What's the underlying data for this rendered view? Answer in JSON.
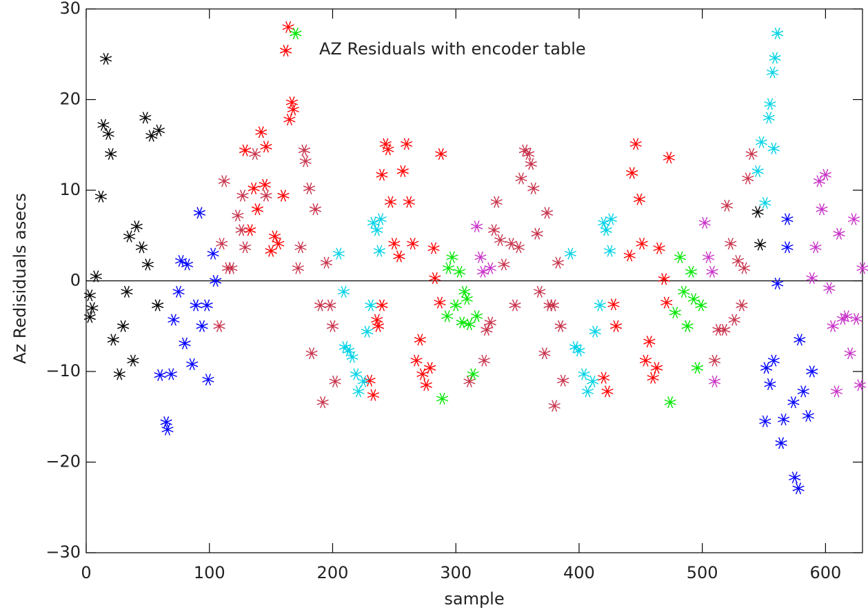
{
  "chart_data": {
    "type": "scatter",
    "title": "AZ Residuals with encoder table",
    "xlabel": "sample",
    "ylabel": "Az Redisiduals asecs",
    "xlim": [
      0,
      630
    ],
    "ylim": [
      -30,
      30
    ],
    "xticks": [
      0,
      100,
      200,
      300,
      400,
      500,
      600
    ],
    "yticks": [
      {
        "value": -30,
        "label": "−30"
      },
      {
        "value": -20,
        "label": "−20"
      },
      {
        "value": -10,
        "label": "−10"
      },
      0,
      10,
      20,
      30
    ],
    "hline": 0,
    "grid": false,
    "series": [
      {
        "color": "#000000",
        "x": [
          3,
          3,
          5,
          8,
          12,
          14,
          16,
          18,
          20,
          22,
          27,
          30,
          33,
          35,
          38,
          41,
          45,
          48,
          50,
          53,
          58,
          59,
          545,
          547
        ],
        "values": [
          -1.6,
          -4,
          -3,
          0.5,
          9.3,
          17.2,
          24.5,
          16.2,
          14,
          -6.5,
          -10.3,
          -5,
          -1.2,
          4.9,
          -8.8,
          6,
          3.7,
          18,
          1.8,
          16,
          -2.7,
          16.6,
          7.6,
          4
        ]
      },
      {
        "color": "#0000ff",
        "x": [
          60,
          65,
          66,
          69,
          71,
          75,
          77,
          80,
          82,
          86,
          89,
          92,
          94,
          98,
          99,
          103,
          105,
          551,
          552,
          555,
          558,
          561,
          564,
          566,
          569,
          569,
          574,
          575,
          578,
          579,
          582,
          586,
          589
        ],
        "values": [
          -10.4,
          -15.6,
          -16.4,
          -10.3,
          -4.3,
          -1.2,
          2.2,
          -6.9,
          1.8,
          -9.2,
          -2.7,
          7.5,
          -5,
          -2.7,
          -10.9,
          3,
          0,
          -15.5,
          -9.6,
          -11.4,
          -8.8,
          -0.3,
          -17.9,
          -15.3,
          6.8,
          3.7,
          -13.4,
          -21.7,
          -22.9,
          -6.5,
          -12.2,
          -14.9,
          -10
        ]
      },
      {
        "color": "#ff0000",
        "x": [
          129,
          133,
          136,
          139,
          142,
          145,
          146,
          150,
          153,
          156,
          160,
          162,
          164,
          165,
          167,
          168,
          230,
          233,
          236,
          237,
          240,
          240,
          243,
          245,
          247,
          250,
          254,
          257,
          260,
          262,
          265,
          268,
          271,
          273,
          276,
          279,
          282,
          283,
          287,
          288,
          420,
          423,
          428,
          430,
          441,
          443,
          446,
          449,
          451,
          454,
          457,
          460,
          463,
          465,
          469,
          471,
          473
        ],
        "values": [
          14.4,
          5.6,
          10.2,
          7.9,
          16.4,
          10.6,
          14.8,
          3.3,
          4.9,
          4.1,
          9.4,
          25.4,
          28,
          17.8,
          19.7,
          18.9,
          -11,
          -12.6,
          -4.3,
          -5,
          -2.7,
          11.7,
          15.1,
          14.5,
          8.7,
          4.1,
          2.7,
          12.1,
          15.1,
          8.7,
          4.1,
          -8.8,
          -6.5,
          -10.3,
          -11.5,
          -9.6,
          3.6,
          0.3,
          -2.4,
          14,
          -10.7,
          -12.2,
          -2.6,
          -5,
          2.8,
          11.9,
          15.1,
          9,
          4.1,
          -8.8,
          -6.7,
          -10.7,
          -9.6,
          3.6,
          0.2,
          -2.4,
          13.6
        ]
      },
      {
        "color": "#c8324b",
        "x": [
          108,
          110,
          112,
          115,
          118,
          123,
          126,
          127,
          129,
          137,
          146,
          172,
          174,
          177,
          178,
          181,
          183,
          186,
          190,
          192,
          195,
          198,
          200,
          202,
          311,
          323,
          325,
          328,
          331,
          333,
          336,
          339,
          345,
          348,
          351,
          353,
          356,
          359,
          361,
          363,
          366,
          368,
          372,
          374,
          376,
          379,
          380,
          383,
          385,
          387,
          510,
          513,
          518,
          520,
          523,
          526,
          529,
          532,
          534,
          537,
          540
        ],
        "values": [
          -5,
          4.1,
          11,
          1.4,
          1.4,
          7.2,
          5.6,
          9.4,
          3.7,
          14,
          9.4,
          1.4,
          3.7,
          14.4,
          13.2,
          10.2,
          -8,
          7.9,
          -2.7,
          -13.4,
          2,
          -2.7,
          -5,
          -11.1,
          -11.1,
          -8.8,
          -5.4,
          -4.6,
          5.6,
          8.7,
          4.5,
          1.8,
          4.1,
          -2.7,
          3.7,
          11.3,
          14.4,
          14,
          12.9,
          10.2,
          5.2,
          -1.2,
          -8,
          7.5,
          -2.7,
          -2.7,
          -13.8,
          2,
          -5,
          -11,
          -8.8,
          -5.4,
          -5.4,
          8.3,
          4.1,
          -4.3,
          2.2,
          -2.7,
          1.4,
          11.3,
          14
        ]
      },
      {
        "color": "#00d2e6",
        "x": [
          205,
          209,
          210,
          213,
          216,
          219,
          221,
          225,
          228,
          231,
          233,
          236,
          238,
          239,
          393,
          397,
          400,
          404,
          407,
          411,
          413,
          417,
          420,
          422,
          425,
          426,
          545,
          548,
          551,
          554,
          555,
          557,
          558,
          559,
          561
        ],
        "values": [
          3,
          -1.2,
          -7.3,
          -7.7,
          -8.4,
          -10.3,
          -12.2,
          -11.1,
          -5.6,
          -2.7,
          6.4,
          5.6,
          3.3,
          6.8,
          3,
          -7.3,
          -7.7,
          -10.3,
          -12.2,
          -11.1,
          -5.6,
          -2.7,
          6.4,
          5.6,
          3.3,
          6.8,
          12.1,
          15.3,
          8.6,
          18,
          19.5,
          23,
          14.6,
          24.6,
          27.3
        ]
      },
      {
        "color": "#00e600",
        "x": [
          170,
          289,
          293,
          294,
          297,
          300,
          303,
          305,
          307,
          309,
          311,
          314,
          317,
          474,
          478,
          482,
          485,
          488,
          491,
          493,
          496,
          499
        ],
        "values": [
          27.3,
          -13,
          -3.9,
          1.4,
          2.6,
          -2.7,
          1,
          -4.6,
          -1.2,
          -2,
          -4.8,
          -10.3,
          -3.9,
          -13.4,
          -3.5,
          2.6,
          -1.2,
          -5,
          1,
          -2,
          -9.6,
          -2.7
        ]
      },
      {
        "color": "#c832c8",
        "x": [
          317,
          320,
          322,
          328,
          502,
          505,
          508,
          510,
          589,
          592,
          595,
          597,
          600,
          603,
          606,
          609,
          611,
          614,
          617,
          620,
          623,
          625,
          628,
          630
        ],
        "values": [
          6,
          2.6,
          1,
          1.4,
          6.4,
          2.6,
          1,
          -11.1,
          0.3,
          3.7,
          11,
          7.9,
          11.7,
          -0.8,
          -5,
          -12.2,
          5.2,
          -4.2,
          -3.9,
          -8,
          6.8,
          -4.2,
          -11.5,
          1.4
        ]
      }
    ]
  }
}
